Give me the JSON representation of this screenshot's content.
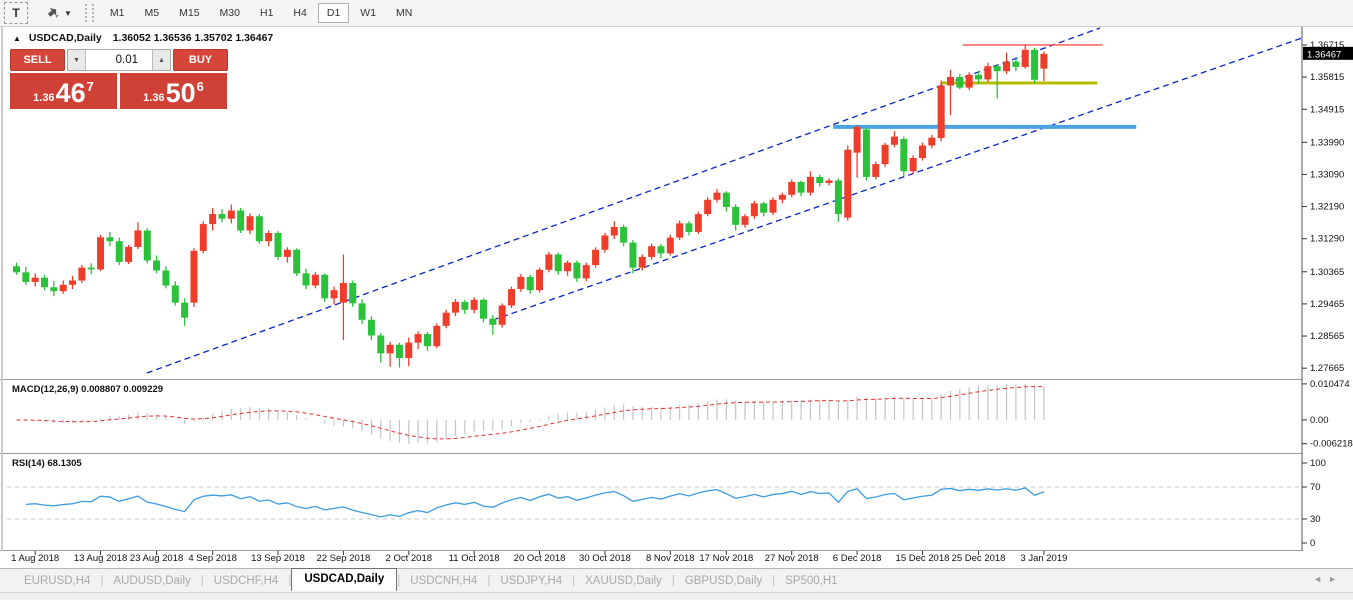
{
  "toolbar": {
    "text_tool_label": "T",
    "timeframes": [
      "M1",
      "M5",
      "M15",
      "M30",
      "H1",
      "H4",
      "D1",
      "W1",
      "MN"
    ],
    "active_timeframe": "D1"
  },
  "chart_header": {
    "symbol": "USDCAD,Daily",
    "ohlc_text": "1.36052 1.36536 1.35702 1.36467"
  },
  "one_click": {
    "sell_label": "SELL",
    "buy_label": "BUY",
    "volume": "0.01",
    "sell_price": {
      "prefix": "1.36",
      "big": "46",
      "sup": "7"
    },
    "buy_price": {
      "prefix": "1.36",
      "big": "50",
      "sup": "6"
    }
  },
  "indicator_titles": {
    "macd": "MACD(12,26,9) 0.008807 0.009229",
    "rsi": "RSI(14) 68.1305"
  },
  "tabs": {
    "items": [
      "EURUSD,H4",
      "AUDUSD,Daily",
      "USDCHF,H4",
      "USDCAD,Daily",
      "USDCNH,H4",
      "USDJPY,H4",
      "XAUUSD,Daily",
      "GBPUSD,Daily",
      "SP500,H1"
    ],
    "active_index": 3
  },
  "chart_data": {
    "type": "candlestick",
    "symbol": "USDCAD",
    "timeframe": "Daily",
    "note": "bullish candles are red, bearish candles are green",
    "colors": {
      "bull": "#ee3e2b",
      "bear": "#2cc13a",
      "trendline": "#0a23c8",
      "resistance_line": "#ff524a",
      "olive_line": "#b3bc00",
      "blue_line": "#4aa4e4",
      "macd_histogram": "#c4c4c4",
      "macd_signal": "#e03131",
      "rsi_line": "#3e9bdf"
    },
    "price_axis": {
      "plot_max": 1.3719,
      "plot_min": 1.2739,
      "ticks": [
        "1.36715",
        "1.35815",
        "1.34915",
        "1.33990",
        "1.33090",
        "1.32190",
        "1.31290",
        "1.30365",
        "1.29465",
        "1.28565",
        "1.27665"
      ],
      "current_price": "1.36467"
    },
    "date_ticks": {
      "labels": [
        "1 Aug 2018",
        "13 Aug 2018",
        "23 Aug 2018",
        "4 Sep 2018",
        "13 Sep 2018",
        "22 Sep 2018",
        "2 Oct 2018",
        "11 Oct 2018",
        "20 Oct 2018",
        "30 Oct 2018",
        "8 Nov 2018",
        "17 Nov 2018",
        "27 Nov 2018",
        "6 Dec 2018",
        "15 Dec 2018",
        "25 Dec 2018",
        "3 Jan 2019"
      ],
      "candle_indices": [
        2,
        9,
        15,
        21,
        28,
        35,
        42,
        49,
        56,
        63,
        70,
        76,
        83,
        90,
        97,
        103,
        110
      ]
    },
    "candles": [
      [
        1.3052,
        1.3062,
        1.3028,
        1.3035
      ],
      [
        1.3035,
        1.305,
        1.3,
        1.3008
      ],
      [
        1.3008,
        1.3032,
        1.2995,
        1.302
      ],
      [
        1.302,
        1.3028,
        1.2985,
        1.2993
      ],
      [
        1.2993,
        1.301,
        1.2968,
        1.2982
      ],
      [
        1.2982,
        1.3012,
        1.2975,
        1.3
      ],
      [
        1.3,
        1.3025,
        1.2988,
        1.3012
      ],
      [
        1.3012,
        1.3055,
        1.3005,
        1.3048
      ],
      [
        1.3048,
        1.306,
        1.303,
        1.3043
      ],
      [
        1.3043,
        1.314,
        1.3038,
        1.3133
      ],
      [
        1.3133,
        1.3148,
        1.3108,
        1.3122
      ],
      [
        1.3122,
        1.3132,
        1.3055,
        1.3064
      ],
      [
        1.3064,
        1.3112,
        1.3058,
        1.3106
      ],
      [
        1.3106,
        1.3175,
        1.31,
        1.3152
      ],
      [
        1.3152,
        1.3158,
        1.306,
        1.3068
      ],
      [
        1.3068,
        1.3082,
        1.3032,
        1.304
      ],
      [
        1.304,
        1.3052,
        1.299,
        1.2998
      ],
      [
        1.2998,
        1.301,
        1.2942,
        1.295
      ],
      [
        1.295,
        1.2962,
        1.2885,
        1.2908
      ],
      [
        1.295,
        1.3102,
        1.2938,
        1.3095
      ],
      [
        1.3095,
        1.3178,
        1.3088,
        1.317
      ],
      [
        1.317,
        1.3215,
        1.3152,
        1.3198
      ],
      [
        1.3198,
        1.3212,
        1.3175,
        1.3185
      ],
      [
        1.3185,
        1.3225,
        1.3172,
        1.3208
      ],
      [
        1.3208,
        1.3215,
        1.3145,
        1.3152
      ],
      [
        1.3152,
        1.32,
        1.3142,
        1.3192
      ],
      [
        1.3192,
        1.3198,
        1.3115,
        1.3122
      ],
      [
        1.3122,
        1.3152,
        1.3108,
        1.3145
      ],
      [
        1.3145,
        1.315,
        1.307,
        1.3078
      ],
      [
        1.3078,
        1.3105,
        1.3062,
        1.3098
      ],
      [
        1.3098,
        1.3102,
        1.3025,
        1.3032
      ],
      [
        1.3032,
        1.3045,
        1.2988,
        1.2998
      ],
      [
        1.2998,
        1.3035,
        1.299,
        1.3028
      ],
      [
        1.3028,
        1.3032,
        1.2952,
        1.2962
      ],
      [
        1.2962,
        1.2995,
        1.2945,
        1.2985
      ],
      [
        1.295,
        1.3085,
        1.2845,
        1.3005
      ],
      [
        1.3005,
        1.3012,
        1.2938,
        1.2948
      ],
      [
        1.2948,
        1.296,
        1.289,
        1.2902
      ],
      [
        1.2902,
        1.2912,
        1.2845,
        1.2858
      ],
      [
        1.2858,
        1.2865,
        1.2782,
        1.2808
      ],
      [
        1.2808,
        1.284,
        1.277,
        1.2832
      ],
      [
        1.2832,
        1.2838,
        1.2768,
        1.2795
      ],
      [
        1.2795,
        1.2852,
        1.2772,
        1.2838
      ],
      [
        1.2838,
        1.287,
        1.282,
        1.2862
      ],
      [
        1.2862,
        1.2868,
        1.2815,
        1.2828
      ],
      [
        1.2828,
        1.2892,
        1.2822,
        1.2885
      ],
      [
        1.2885,
        1.293,
        1.2878,
        1.2922
      ],
      [
        1.2922,
        1.296,
        1.2912,
        1.2952
      ],
      [
        1.2952,
        1.2958,
        1.2918,
        1.293
      ],
      [
        1.293,
        1.2965,
        1.292,
        1.2958
      ],
      [
        1.2958,
        1.2962,
        1.2895,
        1.2905
      ],
      [
        1.2905,
        1.2915,
        1.286,
        1.2888
      ],
      [
        1.2888,
        1.2948,
        1.288,
        1.2942
      ],
      [
        1.2942,
        1.2995,
        1.2935,
        1.2988
      ],
      [
        1.2988,
        1.303,
        1.298,
        1.3022
      ],
      [
        1.3022,
        1.3028,
        1.2975,
        1.2985
      ],
      [
        1.2985,
        1.3048,
        1.2978,
        1.3042
      ],
      [
        1.3042,
        1.3092,
        1.3035,
        1.3085
      ],
      [
        1.3085,
        1.309,
        1.3028,
        1.3038
      ],
      [
        1.3038,
        1.3068,
        1.3025,
        1.3062
      ],
      [
        1.3062,
        1.3068,
        1.3008,
        1.3018
      ],
      [
        1.3018,
        1.3062,
        1.301,
        1.3055
      ],
      [
        1.3055,
        1.3105,
        1.3048,
        1.3098
      ],
      [
        1.3098,
        1.3145,
        1.309,
        1.3138
      ],
      [
        1.3138,
        1.3178,
        1.3128,
        1.3162
      ],
      [
        1.3162,
        1.3168,
        1.3108,
        1.3118
      ],
      [
        1.3118,
        1.3125,
        1.3032,
        1.3048
      ],
      [
        1.3048,
        1.3085,
        1.304,
        1.3078
      ],
      [
        1.3078,
        1.3115,
        1.307,
        1.3108
      ],
      [
        1.3108,
        1.3115,
        1.3075,
        1.3088
      ],
      [
        1.3088,
        1.314,
        1.3082,
        1.3132
      ],
      [
        1.3132,
        1.318,
        1.3125,
        1.3172
      ],
      [
        1.3172,
        1.3178,
        1.3138,
        1.3148
      ],
      [
        1.3148,
        1.3205,
        1.3142,
        1.3198
      ],
      [
        1.3198,
        1.3245,
        1.3192,
        1.3238
      ],
      [
        1.3238,
        1.3268,
        1.323,
        1.3258
      ],
      [
        1.3258,
        1.3262,
        1.3205,
        1.3218
      ],
      [
        1.3218,
        1.3225,
        1.3152,
        1.3168
      ],
      [
        1.3168,
        1.3198,
        1.316,
        1.3192
      ],
      [
        1.3192,
        1.3235,
        1.3185,
        1.3228
      ],
      [
        1.3228,
        1.3232,
        1.3192,
        1.3202
      ],
      [
        1.3202,
        1.3245,
        1.3195,
        1.3238
      ],
      [
        1.3238,
        1.3258,
        1.3228,
        1.3252
      ],
      [
        1.3252,
        1.3295,
        1.3245,
        1.3288
      ],
      [
        1.3288,
        1.3292,
        1.3248,
        1.3258
      ],
      [
        1.3258,
        1.3318,
        1.325,
        1.3302
      ],
      [
        1.3302,
        1.3308,
        1.3275,
        1.3285
      ],
      [
        1.3285,
        1.3298,
        1.3278,
        1.3292
      ],
      [
        1.3292,
        1.3298,
        1.3176,
        1.3198
      ],
      [
        1.3188,
        1.339,
        1.318,
        1.3378
      ],
      [
        1.337,
        1.3447,
        1.33,
        1.3442
      ],
      [
        1.3435,
        1.344,
        1.3292,
        1.3302
      ],
      [
        1.3302,
        1.3345,
        1.3295,
        1.3338
      ],
      [
        1.3338,
        1.3398,
        1.333,
        1.3392
      ],
      [
        1.3392,
        1.343,
        1.3385,
        1.3415
      ],
      [
        1.3408,
        1.3415,
        1.3305,
        1.3318
      ],
      [
        1.3318,
        1.3362,
        1.331,
        1.3355
      ],
      [
        1.3355,
        1.3398,
        1.3348,
        1.339
      ],
      [
        1.339,
        1.342,
        1.3382,
        1.3412
      ],
      [
        1.3411,
        1.3572,
        1.3402,
        1.3558
      ],
      [
        1.3558,
        1.3602,
        1.3475,
        1.3582
      ],
      [
        1.3582,
        1.359,
        1.3548,
        1.3552
      ],
      [
        1.3552,
        1.3595,
        1.3545,
        1.3588
      ],
      [
        1.3588,
        1.3598,
        1.3562,
        1.3575
      ],
      [
        1.3575,
        1.3622,
        1.3568,
        1.3612
      ],
      [
        1.3612,
        1.3618,
        1.3522,
        1.3598
      ],
      [
        1.3598,
        1.365,
        1.359,
        1.3625
      ],
      [
        1.3625,
        1.3638,
        1.3598,
        1.361
      ],
      [
        1.361,
        1.367,
        1.3605,
        1.3658
      ],
      [
        1.3658,
        1.3664,
        1.3565,
        1.3574
      ],
      [
        1.36052,
        1.36536,
        1.35702,
        1.36467
      ]
    ],
    "hlines": [
      {
        "name": "resistance-red",
        "price": 1.36715,
        "x1f": 0.738,
        "x2f": 0.846,
        "color": "#ff524a",
        "width": 1.4
      },
      {
        "name": "support-olive",
        "price": 1.3565,
        "x1f": 0.721,
        "x2f": 0.842,
        "color": "#b3bc00",
        "width": 3
      },
      {
        "name": "support-blue",
        "price": 1.3442,
        "x1f": 0.638,
        "x2f": 0.872,
        "color": "#4aa4e4",
        "width": 4
      }
    ],
    "trendlines": [
      {
        "name": "channel-lower",
        "x1f": 0.108,
        "p1": 1.2753,
        "x2f": 0.844,
        "p2": 1.3719
      },
      {
        "name": "channel-upper",
        "x1f": 0.375,
        "p1": 1.2901,
        "x2f": 1.0,
        "p2": 1.3691
      }
    ],
    "indicators": {
      "macd": {
        "label": "MACD(12,26,9)",
        "fast": 12,
        "slow": 26,
        "signal": 9,
        "value_main": "0.008807",
        "value_signal": "0.009229",
        "axis_labels": {
          "max": "0.010474",
          "zero": "0.00",
          "min": "-0.006218"
        }
      },
      "rsi": {
        "label": "RSI(14)",
        "period": 14,
        "value": "68.1305",
        "levels": [
          70,
          30
        ],
        "axis_labels": [
          "100",
          "70",
          "30",
          "0"
        ]
      }
    }
  }
}
